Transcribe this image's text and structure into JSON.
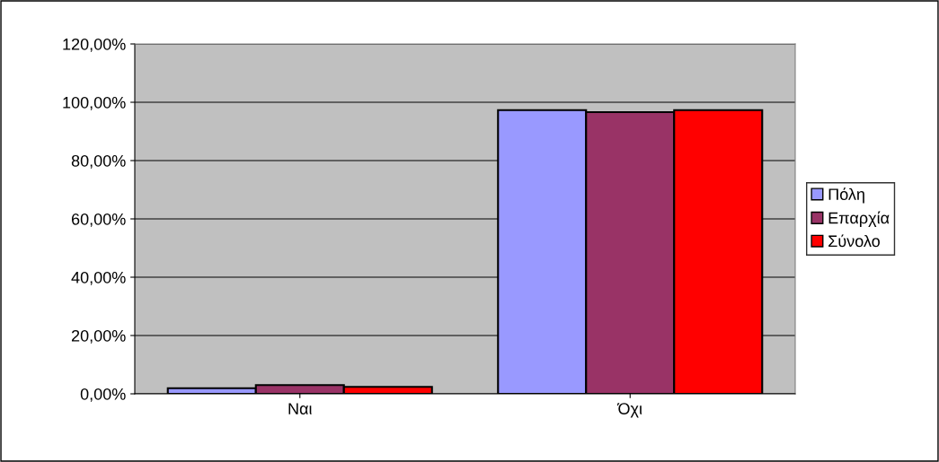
{
  "chart_data": {
    "type": "bar",
    "categories": [
      "Ναι",
      "Όχι"
    ],
    "series": [
      {
        "name": "Πόλη",
        "color": "#9999ff",
        "values": [
          1.9,
          97.3
        ]
      },
      {
        "name": "Επαρχία",
        "color": "#993366",
        "values": [
          3.0,
          96.6
        ]
      },
      {
        "name": "Σύνολο",
        "color": "#ff0000",
        "values": [
          2.4,
          97.3
        ]
      }
    ],
    "ylim": [
      0,
      120
    ],
    "yticks": [
      {
        "value": 0,
        "label": "0,00%"
      },
      {
        "value": 20,
        "label": "20,00%"
      },
      {
        "value": 40,
        "label": "40,00%"
      },
      {
        "value": 60,
        "label": "60,00%"
      },
      {
        "value": 80,
        "label": "80,00%"
      },
      {
        "value": 100,
        "label": "100,00%"
      },
      {
        "value": 120,
        "label": "120,00%"
      }
    ],
    "grid": "y",
    "legend": "right"
  }
}
